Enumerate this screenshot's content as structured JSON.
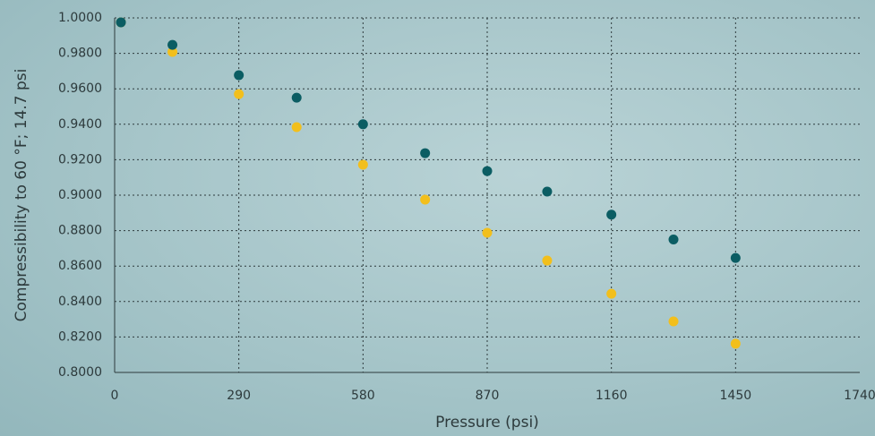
{
  "chart_data": {
    "type": "scatter",
    "x_label": "Pressure (psi)",
    "y_label": "Compressibility to 60 °F; 14.7 psi",
    "x": [
      14.7,
      135,
      290,
      425,
      580,
      725,
      870,
      1010,
      1160,
      1305,
      1450
    ],
    "series": [
      {
        "color": "#0b5d63",
        "values": [
          0.9975,
          0.9848,
          0.9677,
          0.955,
          0.94,
          0.9237,
          0.9136,
          0.902,
          0.889,
          0.875,
          0.8646
        ]
      },
      {
        "color": "#f2bf1c",
        "values": [
          0.9975,
          0.9808,
          0.957,
          0.9384,
          0.9172,
          0.8975,
          0.8788,
          0.8631,
          0.8444,
          0.8288,
          0.8162
        ]
      }
    ],
    "xlim": [
      0,
      1740
    ],
    "xticks": [
      0,
      290,
      580,
      870,
      1160,
      1450,
      1740
    ],
    "ylim": [
      0.8,
      1
    ],
    "yticks": [
      {
        "value": 0.8,
        "label": "0.8000"
      },
      {
        "value": 0.82,
        "label": "0.8200"
      },
      {
        "value": 0.84,
        "label": "0.8400"
      },
      {
        "value": 0.86,
        "label": "0.8600"
      },
      {
        "value": 0.88,
        "label": "0.8800"
      },
      {
        "value": 0.9,
        "label": "0.9000"
      },
      {
        "value": 0.92,
        "label": "0.9200"
      },
      {
        "value": 0.94,
        "label": "0.9400"
      },
      {
        "value": 0.96,
        "label": "0.9600"
      },
      {
        "value": 0.98,
        "label": "0.9800"
      },
      {
        "value": 1,
        "label": "1.0000"
      }
    ],
    "grid": true
  }
}
